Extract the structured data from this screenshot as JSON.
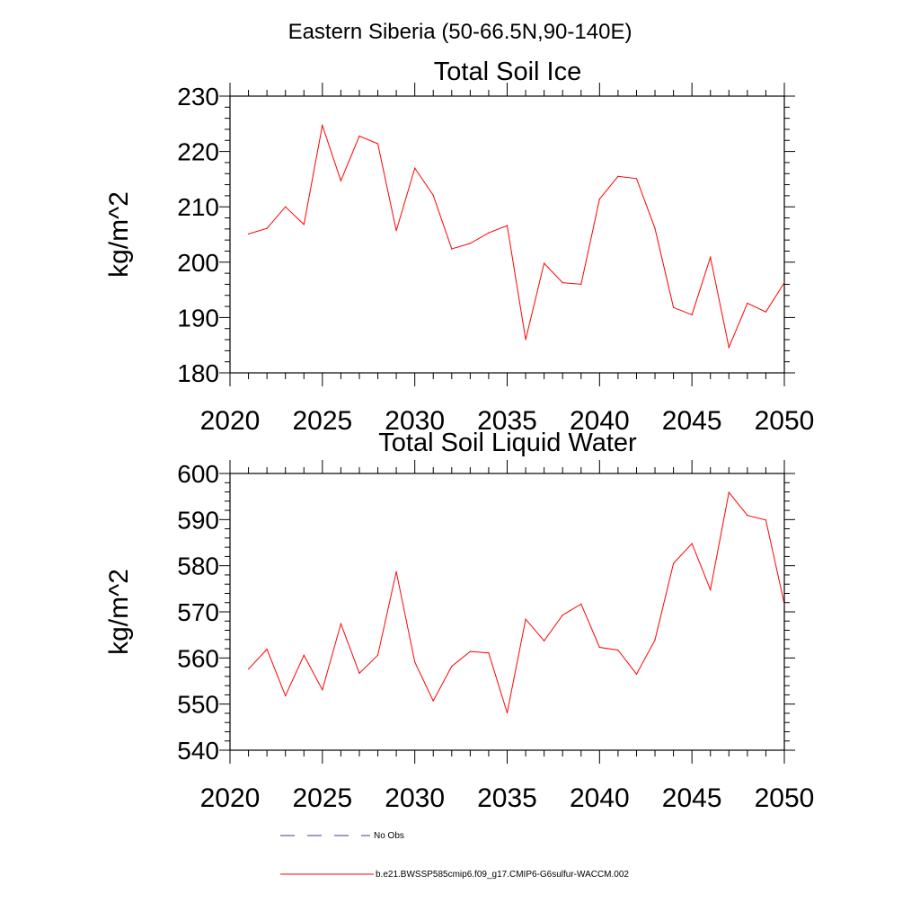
{
  "suptitle": "Eastern Siberia (50-66.5N,90-140E)",
  "colors": {
    "series": "#ff0000",
    "obs": "#3b3b9c",
    "axis": "#000000"
  },
  "legend": {
    "entries": [
      {
        "label": "No Obs",
        "style": "dashed",
        "color": "#3b3b9c"
      },
      {
        "label": "b.e21.BWSSP585cmip6.f09_g17.CMIP6-G6sulfur-WACCM.002",
        "style": "solid",
        "color": "#ff0000"
      }
    ]
  },
  "chart_data": [
    {
      "type": "line",
      "title": "Total Soil Ice",
      "xlabel": "",
      "ylabel": "kg/m^2",
      "xlim": [
        2020,
        2050
      ],
      "ylim": [
        180,
        230
      ],
      "xticks": [
        "2020",
        "2025",
        "2030",
        "2035",
        "2040",
        "2045",
        "2050"
      ],
      "yticks": [
        "180",
        "190",
        "200",
        "210",
        "220",
        "230"
      ],
      "grid": false,
      "x": [
        2021,
        2022,
        2023,
        2024,
        2025,
        2026,
        2027,
        2028,
        2029,
        2030,
        2031,
        2032,
        2033,
        2034,
        2035,
        2036,
        2037,
        2038,
        2039,
        2040,
        2041,
        2042,
        2043,
        2044,
        2045,
        2046,
        2047,
        2048,
        2049,
        2050
      ],
      "series": [
        {
          "name": "b.e21.BWSSP585cmip6.f09_g17.CMIP6-G6sulfur-WACCM.002",
          "values": [
            205.1,
            206.1,
            210.0,
            206.8,
            224.7,
            214.7,
            222.8,
            221.4,
            205.7,
            217.0,
            212.1,
            202.4,
            203.4,
            205.3,
            206.6,
            186.0,
            199.8,
            196.3,
            196.0,
            211.4,
            215.5,
            215.1,
            206.1,
            191.8,
            190.5,
            200.9,
            184.6,
            192.6,
            191.0,
            196.3
          ]
        }
      ]
    },
    {
      "type": "line",
      "title": "Total Soil Liquid Water",
      "xlabel": "",
      "ylabel": "kg/m^2",
      "xlim": [
        2020,
        2050
      ],
      "ylim": [
        540,
        600
      ],
      "xticks": [
        "2020",
        "2025",
        "2030",
        "2035",
        "2040",
        "2045",
        "2050"
      ],
      "yticks": [
        "540",
        "550",
        "560",
        "570",
        "580",
        "590",
        "600"
      ],
      "grid": false,
      "x": [
        2021,
        2022,
        2023,
        2024,
        2025,
        2026,
        2027,
        2028,
        2029,
        2030,
        2031,
        2032,
        2033,
        2034,
        2035,
        2036,
        2037,
        2038,
        2039,
        2040,
        2041,
        2042,
        2043,
        2044,
        2045,
        2046,
        2047,
        2048,
        2049,
        2050
      ],
      "series": [
        {
          "name": "b.e21.BWSSP585cmip6.f09_g17.CMIP6-G6sulfur-WACCM.002",
          "values": [
            557.6,
            561.9,
            551.8,
            560.6,
            553.1,
            567.4,
            556.7,
            560.6,
            578.7,
            559.1,
            550.7,
            558.2,
            561.4,
            561.1,
            548.1,
            568.4,
            563.7,
            569.3,
            571.7,
            562.3,
            561.7,
            556.5,
            563.9,
            580.5,
            584.8,
            574.8,
            595.9,
            590.9,
            589.9,
            571.7
          ]
        }
      ]
    }
  ]
}
